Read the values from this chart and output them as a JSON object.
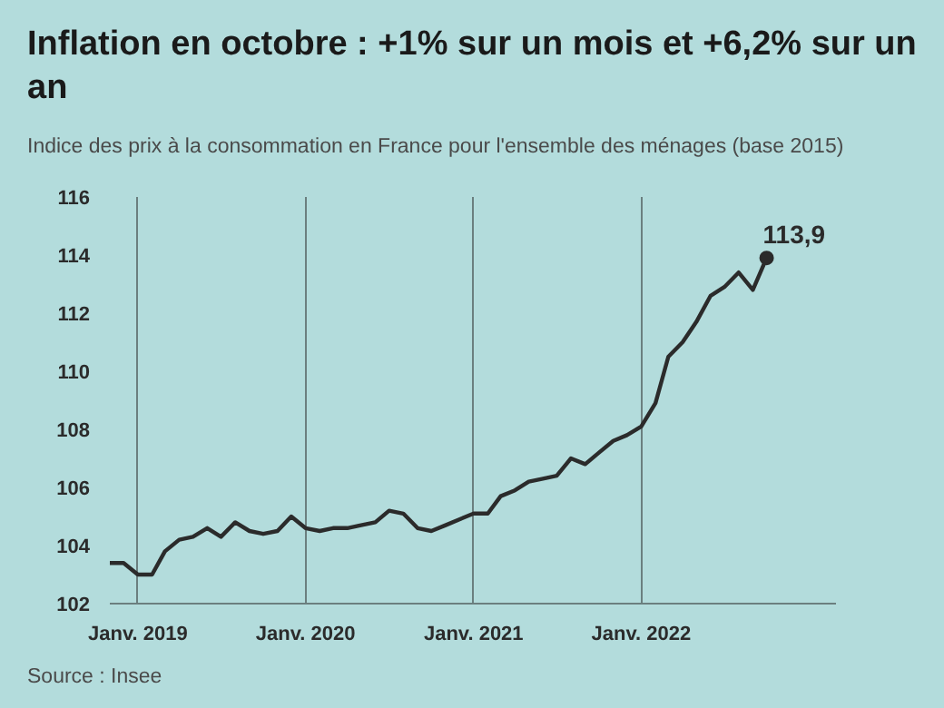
{
  "chart_data": {
    "type": "line",
    "title": "Inflation en octobre : +1% sur un mois et +6,2% sur un an",
    "subtitle": "Indice des prix à la consommation en France pour l'ensemble des ménages (base 2015)",
    "x": [
      "2018-11",
      "2018-12",
      "2019-01",
      "2019-02",
      "2019-03",
      "2019-04",
      "2019-05",
      "2019-06",
      "2019-07",
      "2019-08",
      "2019-09",
      "2019-10",
      "2019-11",
      "2019-12",
      "2020-01",
      "2020-02",
      "2020-03",
      "2020-04",
      "2020-05",
      "2020-06",
      "2020-07",
      "2020-08",
      "2020-09",
      "2020-10",
      "2020-11",
      "2020-12",
      "2021-01",
      "2021-02",
      "2021-03",
      "2021-04",
      "2021-05",
      "2021-06",
      "2021-07",
      "2021-08",
      "2021-09",
      "2021-10",
      "2021-11",
      "2021-12",
      "2022-01",
      "2022-02",
      "2022-03",
      "2022-04",
      "2022-05",
      "2022-06",
      "2022-07",
      "2022-08",
      "2022-09",
      "2022-10"
    ],
    "series": [
      {
        "color": "#2b2b2b",
        "values": [
          103.4,
          103.4,
          103.0,
          103.0,
          103.8,
          104.2,
          104.3,
          104.6,
          104.3,
          104.8,
          104.5,
          104.4,
          104.5,
          105.0,
          104.6,
          104.5,
          104.6,
          104.6,
          104.7,
          104.8,
          105.2,
          105.1,
          104.6,
          104.5,
          104.7,
          104.9,
          105.1,
          105.1,
          105.7,
          105.9,
          106.2,
          106.3,
          106.4,
          107.0,
          106.8,
          107.2,
          107.6,
          107.8,
          108.1,
          108.9,
          110.5,
          111.0,
          111.7,
          112.6,
          112.9,
          113.4,
          112.8,
          113.9
        ]
      },
      {
        "type": "scatter",
        "color": "#2b2b2b",
        "x": [
          "2022-10"
        ],
        "values": [
          113.9
        ],
        "marker": "circle"
      }
    ],
    "xticks": [
      {
        "value": "2019-01",
        "label": "Janv. 2019"
      },
      {
        "value": "2020-01",
        "label": "Janv. 2020"
      },
      {
        "value": "2021-01",
        "label": "Janv. 2021"
      },
      {
        "value": "2022-01",
        "label": "Janv. 2022"
      }
    ],
    "ylim": [
      102,
      116
    ],
    "yticks": [
      102,
      104,
      106,
      108,
      110,
      112,
      114,
      116
    ],
    "xlim": [
      "2018-11",
      "2023-03"
    ],
    "grid": "x",
    "marker": "none",
    "line_style": "solid",
    "annotations": [
      {
        "text": "113,9",
        "x": "2022-10",
        "y": 113.9
      },
      "Source : Insee"
    ]
  }
}
